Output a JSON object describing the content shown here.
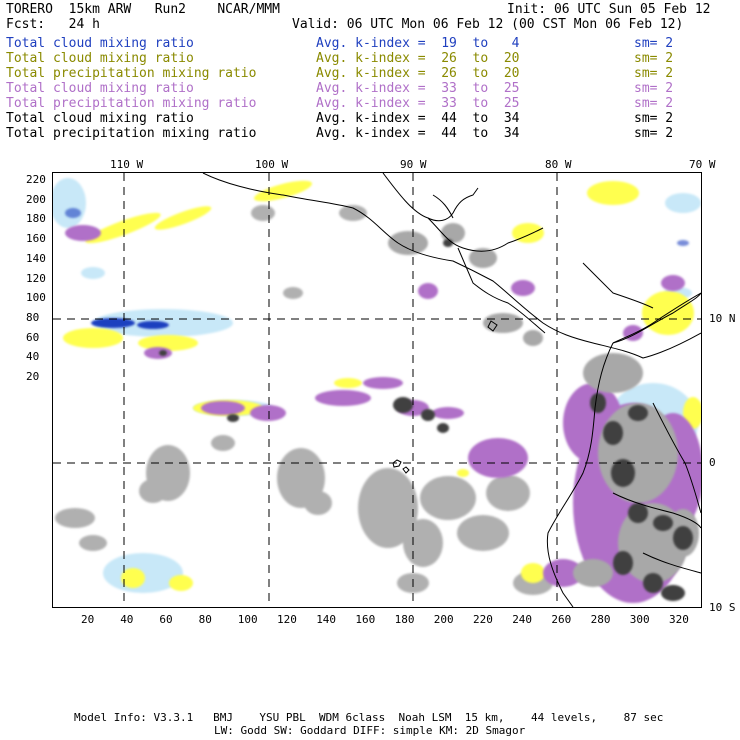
{
  "header": {
    "model": "TORERO  15km ARW   Run2    NCAR/MMM",
    "init": "Init: 06 UTC Sun 05 Feb 12",
    "fcst": "Fcst:   24 h",
    "valid": "Valid: 06 UTC Mon 06 Feb 12 (00 CST Mon 06 Feb 12)"
  },
  "legend": [
    {
      "field": "Total cloud mixing ratio",
      "kindex": "Avg. k-index =  19  to   4",
      "sm": "sm= 2",
      "color": "#1f3fbf"
    },
    {
      "field": "Total cloud mixing ratio",
      "kindex": "Avg. k-index =  26  to  20",
      "sm": "sm= 2",
      "color": "#8a8a00"
    },
    {
      "field": "Total precipitation mixing ratio",
      "kindex": "Avg. k-index =  26  to  20",
      "sm": "sm= 2",
      "color": "#8a8a00"
    },
    {
      "field": "Total cloud mixing ratio",
      "kindex": "Avg. k-index =  33  to  25",
      "sm": "sm= 2",
      "color": "#b070c8"
    },
    {
      "field": "Total precipitation mixing ratio",
      "kindex": "Avg. k-index =  33  to  25",
      "sm": "sm= 2",
      "color": "#b070c8"
    },
    {
      "field": "Total cloud mixing ratio",
      "kindex": "Avg. k-index =  44  to  34",
      "sm": "sm= 2",
      "color": "#000000"
    },
    {
      "field": "Total precipitation mixing ratio",
      "kindex": "Avg. k-index =  44  to  34",
      "sm": "sm= 2",
      "color": "#000000"
    }
  ],
  "map": {
    "lon_labels": [
      "110 W",
      "100 W",
      "90 W",
      "80 W",
      "70 W"
    ],
    "lat_labels": [
      "10 N",
      "0",
      "10 S"
    ],
    "y_ticks": [
      "220",
      "200",
      "180",
      "160",
      "140",
      "120",
      "100",
      "80",
      "60",
      "40",
      "20"
    ],
    "x_ticks": [
      "20",
      "40",
      "60",
      "80",
      "100",
      "120",
      "140",
      "160",
      "180",
      "200",
      "220",
      "240",
      "260",
      "280",
      "300",
      "320"
    ],
    "colors": {
      "blue": "#1f3fbf",
      "light_blue": "#c8e8f8",
      "yellow": "#ffff50",
      "violet": "#b070c8",
      "light_gray": "#a8a8a8",
      "dark_gray": "#404040"
    }
  },
  "footer": {
    "line1": "Model Info: V3.3.1   BMJ    YSU PBL  WDM 6class  Noah LSM  15 km,    44 levels,    87 sec",
    "line2": "LW: Godd SW: Goddard DIFF: simple KM: 2D Smagor"
  }
}
